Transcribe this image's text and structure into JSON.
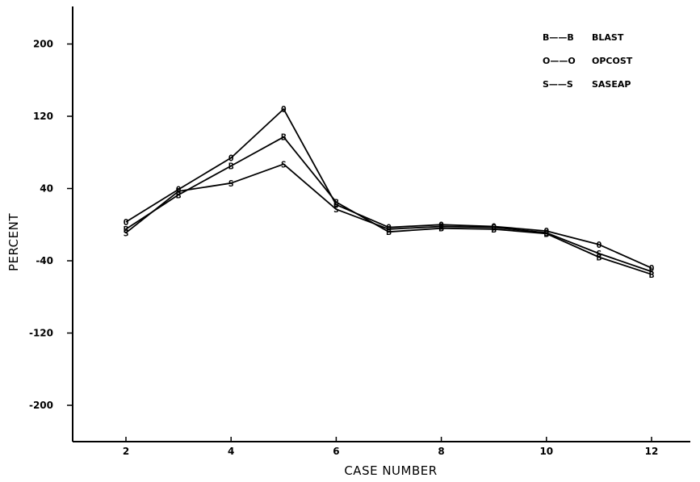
{
  "chart_data": {
    "type": "line",
    "title": "",
    "xlabel": "CASE NUMBER",
    "ylabel": "PERCENT",
    "xlim": [
      1,
      13
    ],
    "ylim": [
      -200,
      200
    ],
    "x_ticks": [
      2,
      4,
      6,
      8,
      10,
      12
    ],
    "y_ticks": [
      200,
      120,
      40,
      -40,
      -120,
      -200
    ],
    "x": [
      2,
      3,
      4,
      5,
      6,
      7,
      8,
      9,
      10,
      11,
      12
    ],
    "series": [
      {
        "name": "BLAST",
        "marker": "B",
        "values": [
          -5,
          33,
          65,
          97,
          25,
          -8,
          -4,
          -5,
          -10,
          -36,
          -55
        ]
      },
      {
        "name": "OPCOST",
        "marker": "O",
        "values": [
          3,
          39,
          74,
          128,
          22,
          -3,
          0,
          -2,
          -7,
          -22,
          -48
        ]
      },
      {
        "name": "SASEAP",
        "marker": "S",
        "values": [
          -9,
          37,
          46,
          67,
          17,
          -5,
          -2,
          -3,
          -9,
          -32,
          -52
        ]
      }
    ],
    "legend": {
      "position": "top-right",
      "items": [
        {
          "key": "B——B",
          "label": "BLAST"
        },
        {
          "key": "O——O",
          "label": "OPCOST"
        },
        {
          "key": "S——S",
          "label": "SASEAP"
        }
      ]
    },
    "grid": false
  }
}
